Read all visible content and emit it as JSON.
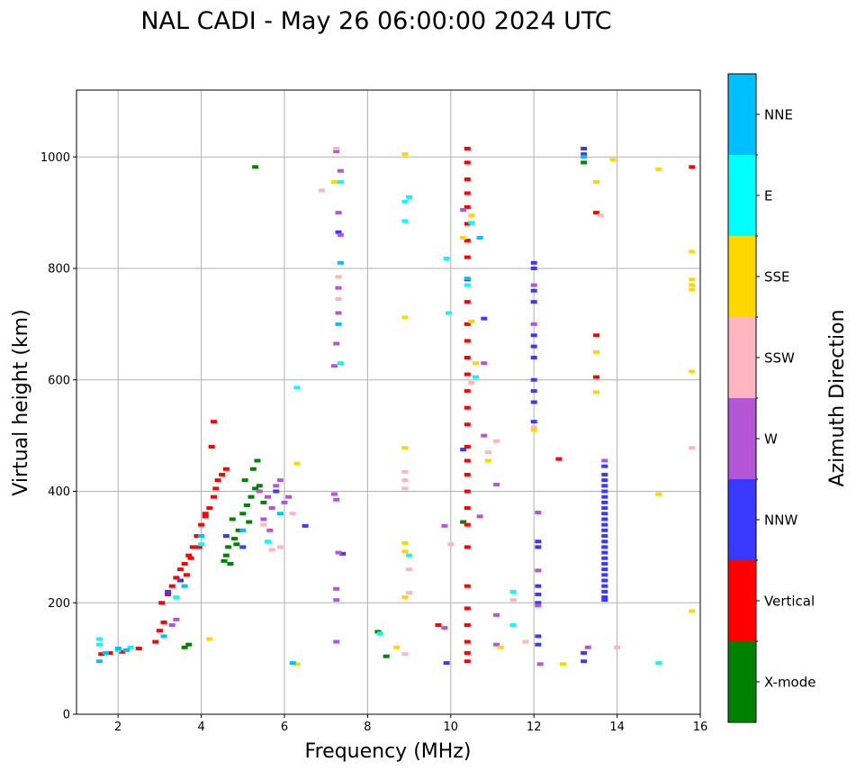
{
  "chart_data": {
    "type": "scatter",
    "title": "NAL CADI - May 26 06:00:00 2024 UTC",
    "xlabel": "Frequency (MHz)",
    "ylabel": "Virtual height (km)",
    "xlim": [
      1,
      16
    ],
    "ylim": [
      0,
      1120
    ],
    "xticks": [
      2,
      4,
      6,
      8,
      10,
      12,
      14,
      16
    ],
    "yticks": [
      0,
      200,
      400,
      600,
      800,
      1000
    ],
    "grid": true,
    "colorbar": {
      "title": "Azimuth Direction",
      "categories": [
        {
          "label": "X-mode",
          "color": "#008000"
        },
        {
          "label": "Vertical",
          "color": "#ff0000"
        },
        {
          "label": "NNW",
          "color": "#3a3aff"
        },
        {
          "label": "W",
          "color": "#b455d6"
        },
        {
          "label": "SSW",
          "color": "#ffb6c1"
        },
        {
          "label": "SSE",
          "color": "#ffd700"
        },
        {
          "label": "E",
          "color": "#00ffff"
        },
        {
          "label": "NNE",
          "color": "#00bfff"
        }
      ]
    },
    "series": [
      {
        "name": "X-mode",
        "points": [
          [
            5.3,
            982
          ],
          [
            4.7,
            270
          ],
          [
            4.6,
            285
          ],
          [
            4.65,
            300
          ],
          [
            4.8,
            315
          ],
          [
            4.9,
            330
          ],
          [
            4.75,
            350
          ],
          [
            5.0,
            360
          ],
          [
            5.1,
            375
          ],
          [
            5.2,
            390
          ],
          [
            5.3,
            405
          ],
          [
            5.05,
            420
          ],
          [
            5.25,
            440
          ],
          [
            5.35,
            455
          ],
          [
            3.7,
            125
          ],
          [
            3.6,
            120
          ],
          [
            8.25,
            148
          ],
          [
            8.45,
            104
          ],
          [
            10.3,
            345
          ],
          [
            13.2,
            990
          ],
          [
            5.15,
            345
          ],
          [
            4.85,
            305
          ],
          [
            4.55,
            275
          ],
          [
            5.5,
            380
          ],
          [
            5.4,
            410
          ]
        ]
      },
      {
        "name": "Vertical",
        "points": [
          [
            1.6,
            108
          ],
          [
            1.8,
            110
          ],
          [
            2.1,
            112
          ],
          [
            2.5,
            118
          ],
          [
            2.9,
            130
          ],
          [
            3.0,
            150
          ],
          [
            3.1,
            165
          ],
          [
            3.05,
            200
          ],
          [
            3.2,
            215
          ],
          [
            3.3,
            230
          ],
          [
            3.4,
            245
          ],
          [
            3.5,
            260
          ],
          [
            3.6,
            270
          ],
          [
            3.7,
            285
          ],
          [
            3.8,
            300
          ],
          [
            3.9,
            320
          ],
          [
            4.0,
            340
          ],
          [
            4.1,
            355
          ],
          [
            4.2,
            370
          ],
          [
            4.3,
            390
          ],
          [
            4.35,
            405
          ],
          [
            4.4,
            420
          ],
          [
            4.5,
            430
          ],
          [
            4.6,
            440
          ],
          [
            4.25,
            480
          ],
          [
            4.3,
            525
          ],
          [
            4.1,
            360
          ],
          [
            3.95,
            300
          ],
          [
            3.75,
            280
          ],
          [
            3.65,
            250
          ],
          [
            10.4,
            1015
          ],
          [
            10.4,
            990
          ],
          [
            10.4,
            960
          ],
          [
            10.4,
            935
          ],
          [
            10.4,
            910
          ],
          [
            10.4,
            880
          ],
          [
            10.4,
            850
          ],
          [
            10.4,
            820
          ],
          [
            10.4,
            780
          ],
          [
            10.4,
            740
          ],
          [
            10.4,
            700
          ],
          [
            10.4,
            670
          ],
          [
            10.4,
            640
          ],
          [
            10.4,
            610
          ],
          [
            10.4,
            580
          ],
          [
            10.4,
            550
          ],
          [
            10.4,
            520
          ],
          [
            10.4,
            480
          ],
          [
            10.4,
            455
          ],
          [
            10.4,
            430
          ],
          [
            10.4,
            400
          ],
          [
            10.4,
            370
          ],
          [
            10.4,
            340
          ],
          [
            10.4,
            300
          ],
          [
            10.4,
            230
          ],
          [
            10.4,
            190
          ],
          [
            10.4,
            160
          ],
          [
            10.4,
            130
          ],
          [
            10.4,
            110
          ],
          [
            10.4,
            95
          ],
          [
            12.6,
            458
          ],
          [
            13.5,
            900
          ],
          [
            13.5,
            680
          ],
          [
            13.5,
            605
          ],
          [
            15.8,
            982
          ],
          [
            9.7,
            160
          ]
        ]
      },
      {
        "name": "NNW",
        "points": [
          [
            13.7,
            445
          ],
          [
            13.7,
            430
          ],
          [
            13.7,
            420
          ],
          [
            13.7,
            410
          ],
          [
            13.7,
            400
          ],
          [
            13.7,
            390
          ],
          [
            13.7,
            380
          ],
          [
            13.7,
            370
          ],
          [
            13.7,
            360
          ],
          [
            13.7,
            350
          ],
          [
            13.7,
            340
          ],
          [
            13.7,
            330
          ],
          [
            13.7,
            320
          ],
          [
            13.7,
            310
          ],
          [
            13.7,
            300
          ],
          [
            13.7,
            290
          ],
          [
            13.7,
            280
          ],
          [
            13.7,
            270
          ],
          [
            13.7,
            260
          ],
          [
            13.7,
            250
          ],
          [
            13.7,
            240
          ],
          [
            13.7,
            230
          ],
          [
            13.7,
            220
          ],
          [
            13.7,
            210
          ],
          [
            13.7,
            205
          ],
          [
            13.2,
            1015
          ],
          [
            13.2,
            1005
          ],
          [
            12.0,
            810
          ],
          [
            12.0,
            800
          ],
          [
            12.0,
            760
          ],
          [
            12.0,
            740
          ],
          [
            12.0,
            680
          ],
          [
            12.0,
            660
          ],
          [
            12.0,
            640
          ],
          [
            12.0,
            600
          ],
          [
            12.0,
            580
          ],
          [
            12.0,
            560
          ],
          [
            12.0,
            525
          ],
          [
            12.1,
            310
          ],
          [
            12.1,
            300
          ],
          [
            12.1,
            230
          ],
          [
            12.1,
            215
          ],
          [
            12.1,
            200
          ],
          [
            12.1,
            140
          ],
          [
            12.1,
            125
          ],
          [
            13.2,
            95
          ],
          [
            13.2,
            110
          ],
          [
            7.3,
            865
          ],
          [
            7.4,
            288
          ],
          [
            9.9,
            92
          ],
          [
            10.3,
            475
          ],
          [
            10.8,
            710
          ],
          [
            6.5,
            338
          ],
          [
            4.6,
            320
          ],
          [
            5.0,
            300
          ],
          [
            5.8,
            400
          ],
          [
            3.2,
            220
          ],
          [
            3.5,
            240
          ]
        ]
      },
      {
        "name": "W",
        "points": [
          [
            7.25,
            1010
          ],
          [
            7.35,
            975
          ],
          [
            7.3,
            900
          ],
          [
            7.35,
            860
          ],
          [
            7.3,
            765
          ],
          [
            7.3,
            720
          ],
          [
            7.25,
            665
          ],
          [
            7.2,
            625
          ],
          [
            7.2,
            395
          ],
          [
            7.25,
            385
          ],
          [
            7.3,
            290
          ],
          [
            7.25,
            225
          ],
          [
            7.25,
            205
          ],
          [
            7.25,
            130
          ],
          [
            12.1,
            362
          ],
          [
            12.1,
            258
          ],
          [
            12.1,
            195
          ],
          [
            12.15,
            90
          ],
          [
            13.3,
            120
          ],
          [
            12.0,
            770
          ],
          [
            12.0,
            700
          ],
          [
            10.8,
            630
          ],
          [
            10.8,
            500
          ],
          [
            10.7,
            355
          ],
          [
            11.1,
            412
          ],
          [
            11.1,
            178
          ],
          [
            11.1,
            125
          ],
          [
            9.85,
            338
          ],
          [
            9.85,
            155
          ],
          [
            10.3,
            905
          ],
          [
            13.7,
            455
          ],
          [
            5.6,
            390
          ],
          [
            5.8,
            410
          ],
          [
            5.9,
            420
          ],
          [
            6.0,
            380
          ],
          [
            5.7,
            370
          ],
          [
            5.5,
            350
          ],
          [
            5.65,
            330
          ],
          [
            6.1,
            390
          ],
          [
            5.4,
            400
          ],
          [
            3.4,
            170
          ],
          [
            3.3,
            160
          ]
        ]
      },
      {
        "name": "SSW",
        "points": [
          [
            7.25,
            1015
          ],
          [
            7.3,
            785
          ],
          [
            7.3,
            745
          ],
          [
            8.9,
            435
          ],
          [
            8.9,
            420
          ],
          [
            8.9,
            405
          ],
          [
            9.0,
            260
          ],
          [
            9.0,
            218
          ],
          [
            8.9,
            108
          ],
          [
            10.0,
            305
          ],
          [
            10.5,
            595
          ],
          [
            10.9,
            470
          ],
          [
            11.1,
            490
          ],
          [
            11.5,
            220
          ],
          [
            11.5,
            205
          ],
          [
            11.8,
            130
          ],
          [
            12.0,
            515
          ],
          [
            13.6,
            895
          ],
          [
            14.0,
            120
          ],
          [
            15.8,
            478
          ],
          [
            6.9,
            940
          ],
          [
            5.9,
            300
          ],
          [
            5.7,
            295
          ],
          [
            6.2,
            360
          ],
          [
            5.5,
            340
          ]
        ]
      },
      {
        "name": "SSE",
        "points": [
          [
            8.9,
            1005
          ],
          [
            8.9,
            712
          ],
          [
            8.9,
            478
          ],
          [
            8.9,
            307
          ],
          [
            8.9,
            292
          ],
          [
            8.9,
            210
          ],
          [
            8.7,
            120
          ],
          [
            10.3,
            855
          ],
          [
            10.5,
            895
          ],
          [
            10.5,
            705
          ],
          [
            10.6,
            630
          ],
          [
            10.9,
            455
          ],
          [
            11.2,
            120
          ],
          [
            12.7,
            90
          ],
          [
            13.5,
            955
          ],
          [
            13.5,
            650
          ],
          [
            13.5,
            578
          ],
          [
            13.9,
            995
          ],
          [
            15.0,
            978
          ],
          [
            15.0,
            395
          ],
          [
            15.8,
            830
          ],
          [
            15.8,
            780
          ],
          [
            15.8,
            770
          ],
          [
            15.8,
            762
          ],
          [
            15.8,
            615
          ],
          [
            15.8,
            185
          ],
          [
            6.3,
            90
          ],
          [
            6.3,
            450
          ],
          [
            4.2,
            135
          ],
          [
            12.0,
            510
          ],
          [
            7.2,
            955
          ]
        ]
      },
      {
        "name": "E",
        "points": [
          [
            8.9,
            920
          ],
          [
            8.9,
            885
          ],
          [
            9.0,
            928
          ],
          [
            9.0,
            285
          ],
          [
            9.9,
            818
          ],
          [
            9.95,
            720
          ],
          [
            10.5,
            882
          ],
          [
            10.4,
            770
          ],
          [
            10.6,
            605
          ],
          [
            11.5,
            160
          ],
          [
            11.5,
            220
          ],
          [
            15.0,
            92
          ],
          [
            6.3,
            586
          ],
          [
            7.35,
            630
          ],
          [
            7.35,
            955
          ],
          [
            8.3,
            145
          ],
          [
            1.55,
            135
          ],
          [
            1.55,
            125
          ],
          [
            2.0,
            115
          ],
          [
            2.3,
            120
          ],
          [
            4.0,
            305
          ],
          [
            3.4,
            210
          ],
          [
            5.6,
            310
          ]
        ]
      },
      {
        "name": "NNE",
        "points": [
          [
            13.2,
            1000
          ],
          [
            10.4,
            782
          ],
          [
            10.7,
            855
          ],
          [
            7.3,
            700
          ],
          [
            7.35,
            810
          ],
          [
            6.2,
            92
          ],
          [
            1.55,
            95
          ],
          [
            1.7,
            110
          ],
          [
            2.0,
            118
          ],
          [
            2.2,
            115
          ],
          [
            3.1,
            140
          ],
          [
            4.0,
            320
          ],
          [
            5.0,
            330
          ],
          [
            5.9,
            360
          ],
          [
            3.6,
            230
          ]
        ]
      }
    ]
  }
}
